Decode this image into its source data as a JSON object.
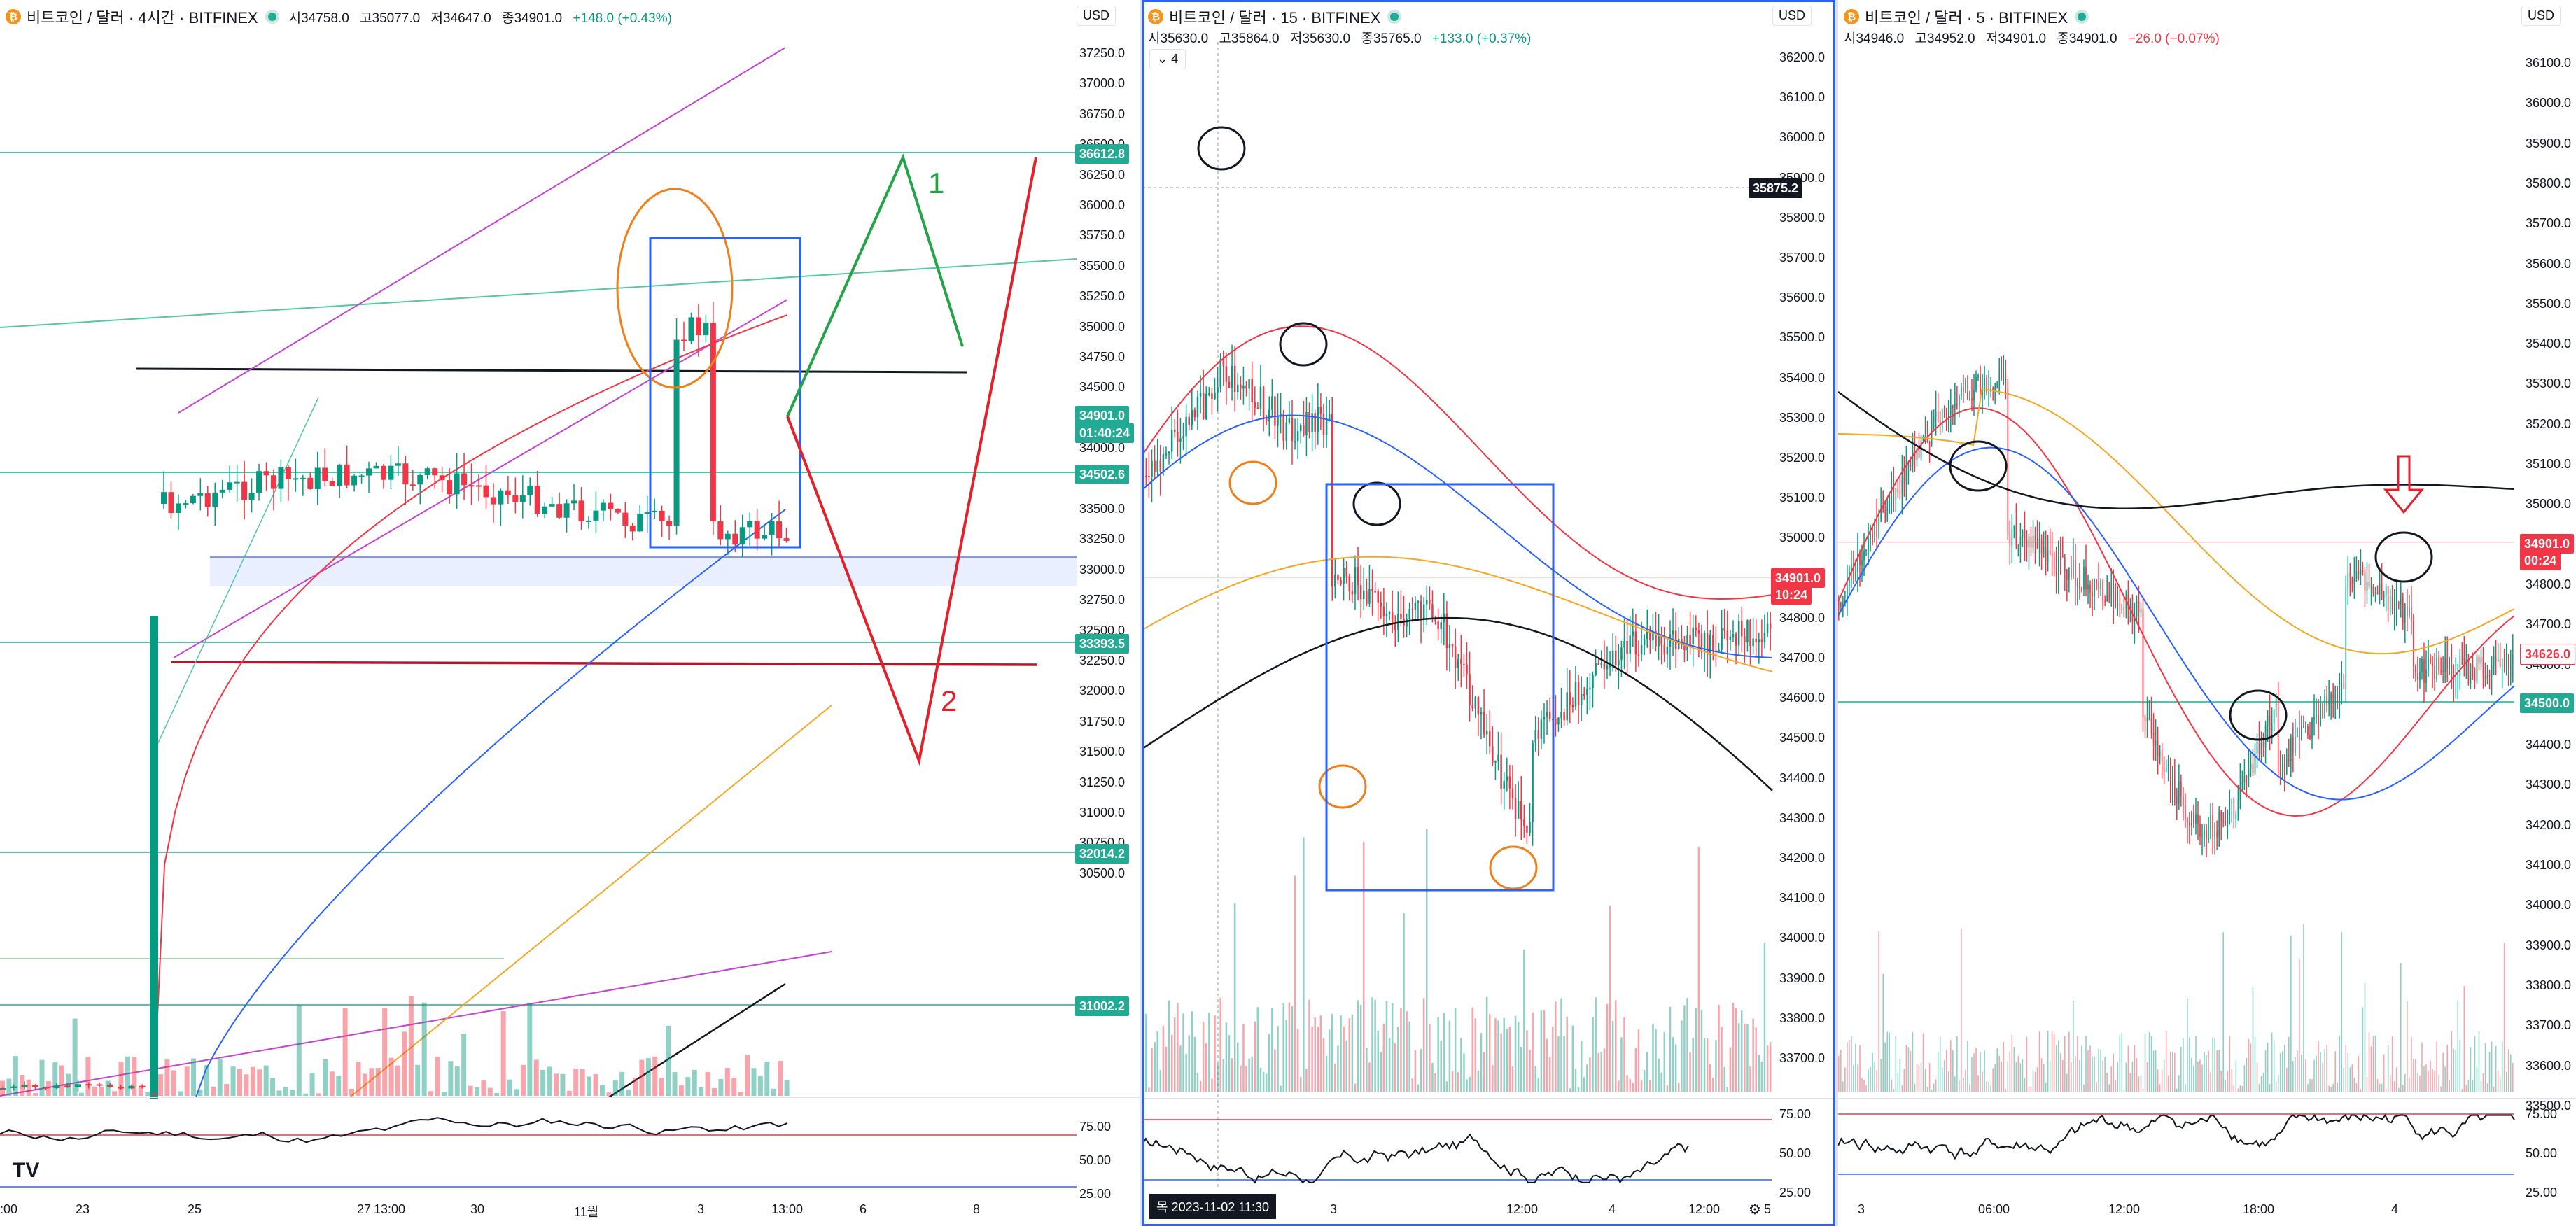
{
  "pane1": {
    "symbol": "비트코인 / 달러 · 4시간 · BITFINEX",
    "ohlc": {
      "open": "시34758.0",
      "high": "고35077.0",
      "low": "저34647.0",
      "close": "종34901.0",
      "change": "+148.0 (+0.43%)"
    },
    "currency": "USD",
    "price_ticks": [
      "37250.0",
      "37000.0",
      "36750.0",
      "36500.0",
      "36250.0",
      "36000.0",
      "35750.0",
      "35500.0",
      "35250.0",
      "35000.0",
      "34750.0",
      "34500.0",
      "34250.0",
      "34000.0",
      "33750.0",
      "33500.0",
      "33250.0",
      "33000.0",
      "32750.0",
      "32500.0",
      "32250.0",
      "32000.0",
      "31750.0",
      "31500.0",
      "31250.0",
      "31000.0",
      "30750.0",
      "30500.0"
    ],
    "price_tags": [
      {
        "text": "36612.8",
        "color": "#22ab94"
      },
      {
        "text": "34901.0",
        "color": "#22ab94"
      },
      {
        "text": "01:40:24",
        "color": "#22ab94"
      },
      {
        "text": "34502.6",
        "color": "#22ab94"
      },
      {
        "text": "33393.5",
        "color": "#22ab94"
      },
      {
        "text": "32014.2",
        "color": "#22ab94"
      },
      {
        "text": "31002.2",
        "color": "#22ab94"
      }
    ],
    "rsi_ticks": [
      "75.00",
      "50.00",
      "25.00"
    ],
    "time_ticks": [
      ":00",
      "23",
      "25",
      "27",
      "13:00",
      "30",
      "11월",
      "3",
      "13:00",
      "6",
      "8"
    ],
    "annotations": {
      "label1": "1",
      "label2": "2"
    },
    "logo": "TV"
  },
  "pane2": {
    "symbol": "비트코인 / 달러 · 15 · BITFINEX",
    "ohlc": {
      "open": "시35630.0",
      "high": "고35864.0",
      "low": "저35630.0",
      "close": "종35765.0",
      "change": "+133.0 (+0.37%)"
    },
    "currency": "USD",
    "collapse_count": "4",
    "price_ticks": [
      "36200.0",
      "36100.0",
      "36000.0",
      "35900.0",
      "35800.0",
      "35700.0",
      "35600.0",
      "35500.0",
      "35400.0",
      "35300.0",
      "35200.0",
      "35100.0",
      "35000.0",
      "34900.0",
      "34800.0",
      "34700.0",
      "34600.0",
      "34500.0",
      "34400.0",
      "34300.0",
      "34200.0",
      "34100.0",
      "34000.0",
      "33900.0",
      "33800.0",
      "33700.0"
    ],
    "crosshair_price": "35875.2",
    "price_tags": [
      {
        "text": "34901.0",
        "color": "#f23645"
      },
      {
        "text": "10:24",
        "color": "#f23645"
      }
    ],
    "rsi_ticks": [
      "75.00",
      "50.00",
      "25.00"
    ],
    "time_ticks": [
      "3",
      "12:00",
      "4",
      "12:00",
      "5"
    ],
    "crosshair_date": "목 2023-11-02  11:30"
  },
  "pane3": {
    "symbol": "비트코인 / 달러 · 5 · BITFINEX",
    "ohlc": {
      "open": "시34946.0",
      "high": "고34952.0",
      "low": "저34901.0",
      "close": "종34901.0",
      "change": "−26.0 (−0.07%)"
    },
    "currency": "USD",
    "price_ticks": [
      "36100.0",
      "36000.0",
      "35900.0",
      "35800.0",
      "35700.0",
      "35600.0",
      "35500.0",
      "35400.0",
      "35300.0",
      "35200.0",
      "35100.0",
      "35000.0",
      "34900.0",
      "34800.0",
      "34700.0",
      "34600.0",
      "34500.0",
      "34400.0",
      "34300.0",
      "34200.0",
      "34100.0",
      "34000.0",
      "33900.0",
      "33800.0",
      "33700.0",
      "33600.0",
      "33500.0"
    ],
    "price_tags": [
      {
        "text": "34901.0",
        "color": "#f23645"
      },
      {
        "text": "00:24",
        "color": "#f23645"
      },
      {
        "text": "34626.0",
        "color": "#ffffff"
      },
      {
        "text": "34500.0",
        "color": "#22ab94"
      }
    ],
    "rsi_ticks": [
      "75.00",
      "50.00",
      "25.00"
    ],
    "time_ticks": [
      "3",
      "06:00",
      "12:00",
      "18:00",
      "4"
    ]
  },
  "colors": {
    "up": "#089981",
    "down": "#f23645",
    "accent": "#2962ff"
  },
  "icons": {
    "coin": "bitcoin-icon",
    "live": "live-status-icon",
    "settings": "settings-icon",
    "crosshair": "crosshair-add-icon"
  }
}
